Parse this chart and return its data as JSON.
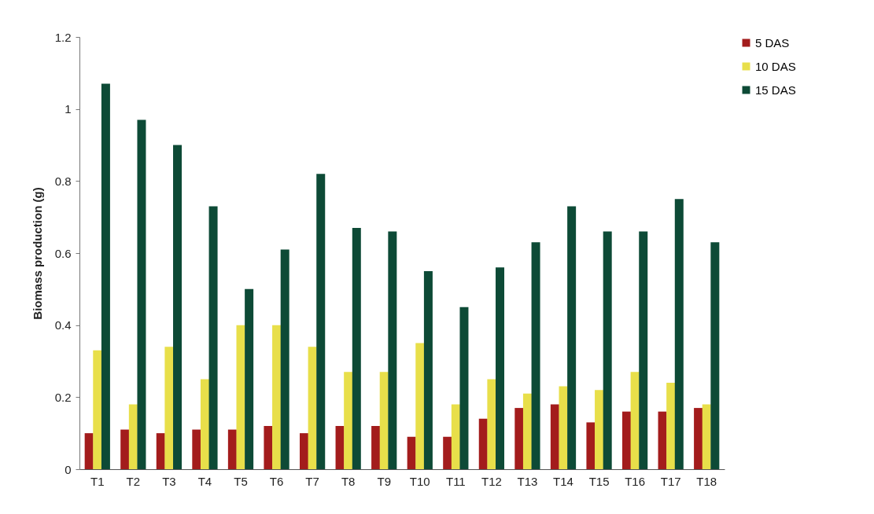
{
  "chart_data": {
    "type": "bar",
    "ylabel": "Biomass production (g)",
    "categories": [
      "T1",
      "T2",
      "T3",
      "T4",
      "T5",
      "T6",
      "T7",
      "T8",
      "T9",
      "T10",
      "T11",
      "T12",
      "T13",
      "T14",
      "T15",
      "T16",
      "T17",
      "T18"
    ],
    "series": [
      {
        "name": "5 DAS",
        "color": "#a31c1c",
        "values": [
          0.1,
          0.11,
          0.1,
          0.11,
          0.11,
          0.12,
          0.1,
          0.12,
          0.12,
          0.09,
          0.09,
          0.14,
          0.17,
          0.18,
          0.13,
          0.16,
          0.16,
          0.17
        ]
      },
      {
        "name": "10 DAS",
        "color": "#e8df4a",
        "values": [
          0.33,
          0.18,
          0.34,
          0.25,
          0.4,
          0.4,
          0.34,
          0.27,
          0.27,
          0.35,
          0.18,
          0.25,
          0.21,
          0.23,
          0.22,
          0.27,
          0.24,
          0.18
        ]
      },
      {
        "name": "15 DAS",
        "color": "#0d4a36",
        "values": [
          1.07,
          0.97,
          0.9,
          0.73,
          0.5,
          0.61,
          0.82,
          0.67,
          0.66,
          0.55,
          0.45,
          0.56,
          0.63,
          0.73,
          0.66,
          0.66,
          0.75,
          0.63
        ]
      }
    ],
    "ylim": [
      0,
      1.2
    ],
    "yticks": [
      0,
      0.2,
      0.4,
      0.6,
      0.8,
      1,
      1.2
    ],
    "grid": false,
    "legend": "right"
  }
}
